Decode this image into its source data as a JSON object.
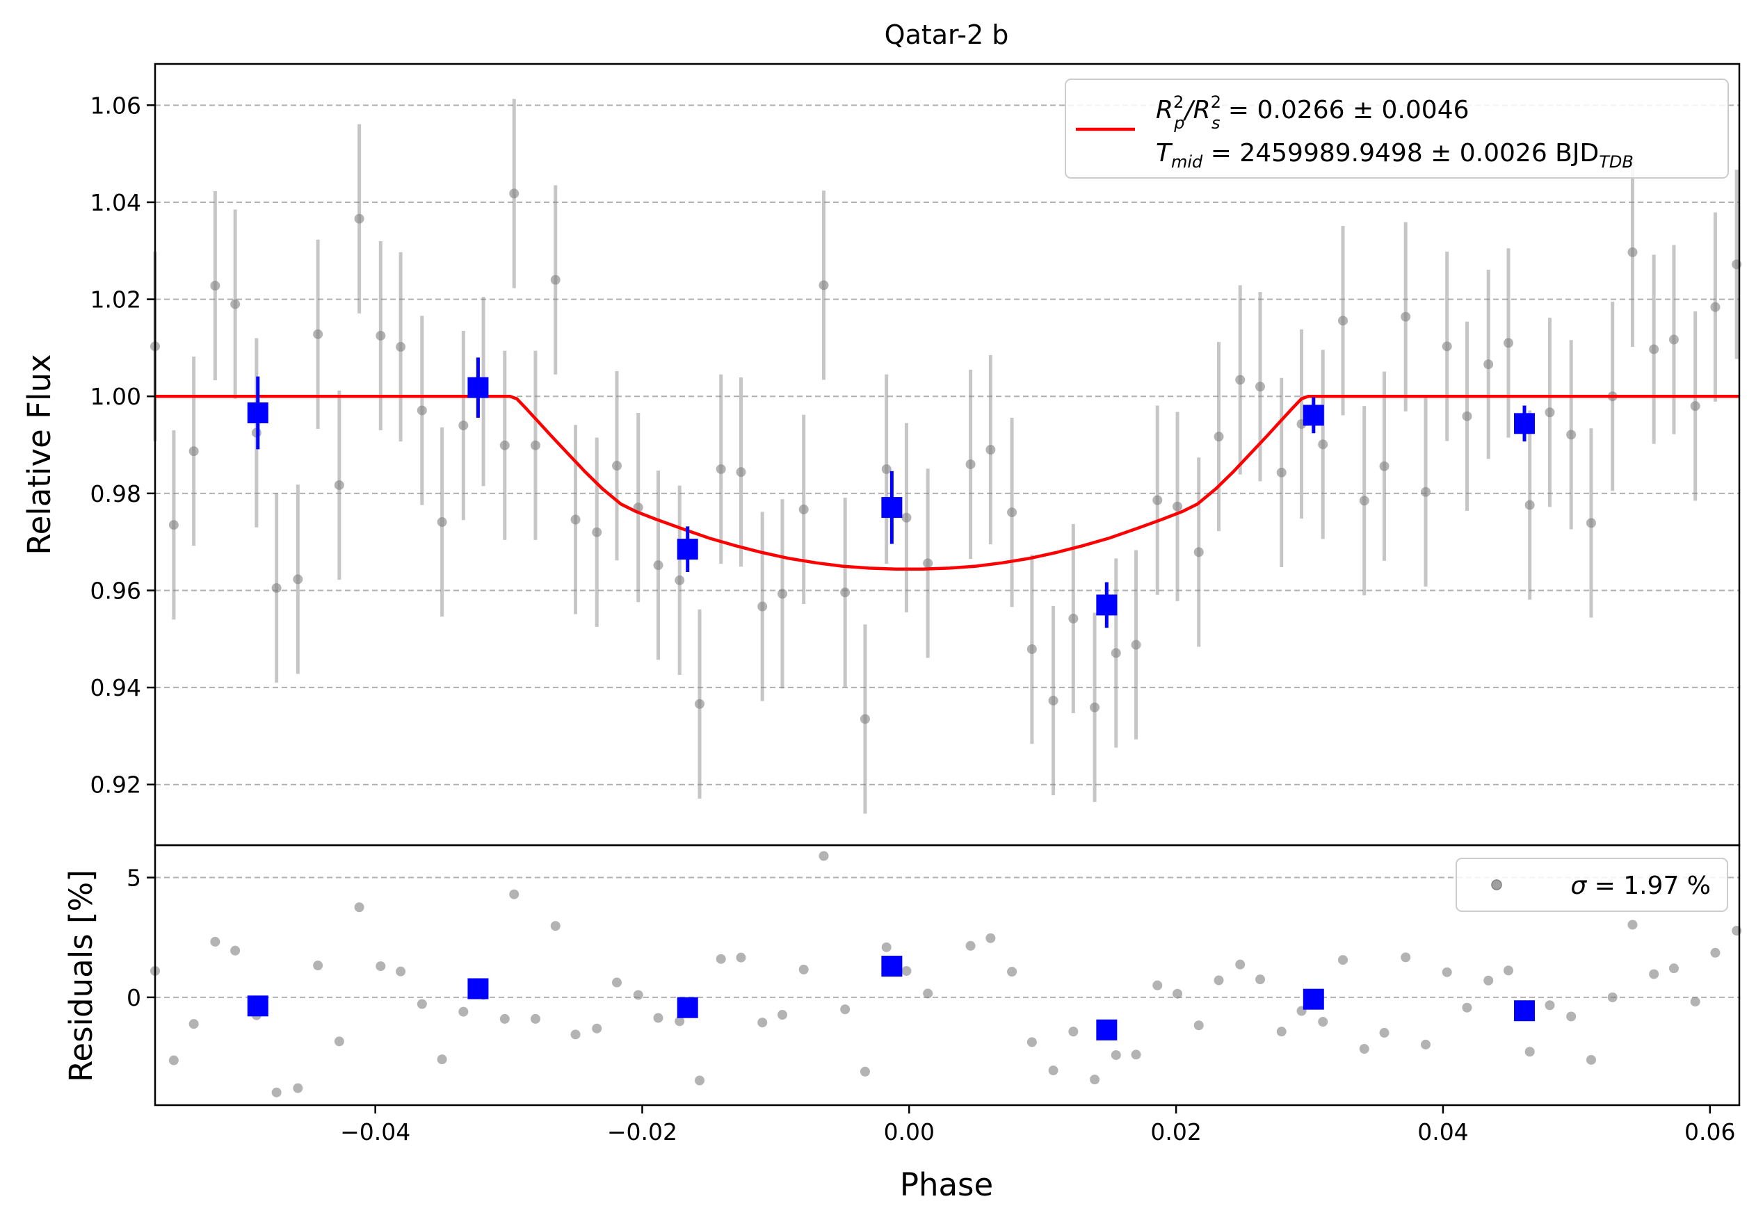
{
  "chart_data": [
    {
      "panel": "top",
      "type": "scatter",
      "title": "Qatar-2 b",
      "ylabel": "Relative Flux",
      "xlim": [
        -0.0565,
        0.0622
      ],
      "ylim": [
        0.9075,
        1.0685
      ],
      "yticks": [
        0.92,
        0.94,
        0.96,
        0.98,
        1.0,
        1.02,
        1.04,
        1.06
      ],
      "ytick_labels": [
        "0.92",
        "0.94",
        "0.96",
        "0.98",
        "1.00",
        "1.02",
        "1.04",
        "1.06"
      ],
      "grid": "horizontal dashed",
      "legend": {
        "position": "top-right",
        "entry_text": "R²p/R²s = 0.0266 ± 0.0046  Tmid = 2459989.9498 ± 0.0026 BJD_TDB",
        "line1": {
          "a": "R",
          "a_sup": "2",
          "a_sub": "p",
          "b": "/R",
          "b_sup": "2",
          "b_sub": "s",
          "rest": " = 0.0266 ± 0.0046"
        },
        "line2": {
          "a": "T",
          "a_sub": "mid",
          "rest": " = 2459989.9498 ± 0.0026 BJD",
          "rest_sub": "TDB"
        }
      },
      "series": [
        {
          "kind": "raw",
          "color": "#808080",
          "points": [
            [
              -0.0565,
              1.0103,
              0.0195
            ],
            [
              -0.0551,
              0.9735,
              0.0195
            ],
            [
              -0.0536,
              0.9887,
              0.0195
            ],
            [
              -0.052,
              1.0228,
              0.0195
            ],
            [
              -0.0505,
              1.019,
              0.0195
            ],
            [
              -0.0489,
              0.9925,
              0.0195
            ],
            [
              -0.0474,
              0.9605,
              0.0195
            ],
            [
              -0.0458,
              0.9623,
              0.0195
            ],
            [
              -0.0443,
              1.0128,
              0.0195
            ],
            [
              -0.0427,
              0.9817,
              0.0195
            ],
            [
              -0.0412,
              1.0366,
              0.0195
            ],
            [
              -0.0396,
              1.0125,
              0.0195
            ],
            [
              -0.0381,
              1.0102,
              0.0195
            ],
            [
              -0.0365,
              0.9971,
              0.0195
            ],
            [
              -0.035,
              0.9741,
              0.0195
            ],
            [
              -0.0334,
              0.994,
              0.0195
            ],
            [
              -0.0319,
              1.001,
              0.0195
            ],
            [
              -0.0303,
              0.9899,
              0.0195
            ],
            [
              -0.0296,
              1.0418,
              0.0195
            ],
            [
              -0.028,
              0.9899,
              0.0195
            ],
            [
              -0.0265,
              1.024,
              0.0195
            ],
            [
              -0.025,
              0.9746,
              0.0195
            ],
            [
              -0.0234,
              0.972,
              0.0195
            ],
            [
              -0.0219,
              0.9857,
              0.0195
            ],
            [
              -0.0203,
              0.9771,
              0.0195
            ],
            [
              -0.0188,
              0.9652,
              0.0195
            ],
            [
              -0.0172,
              0.9621,
              0.0195
            ],
            [
              -0.0157,
              0.9366,
              0.0195
            ],
            [
              -0.0141,
              0.985,
              0.0195
            ],
            [
              -0.0126,
              0.9844,
              0.0195
            ],
            [
              -0.011,
              0.9567,
              0.0195
            ],
            [
              -0.0095,
              0.9593,
              0.0195
            ],
            [
              -0.0079,
              0.9767,
              0.0195
            ],
            [
              -0.0064,
              1.0229,
              0.0195
            ],
            [
              -0.0048,
              0.9596,
              0.0195
            ],
            [
              -0.0033,
              0.9335,
              0.0195
            ],
            [
              -0.0017,
              0.985,
              0.0195
            ],
            [
              -0.0002,
              0.975,
              0.0195
            ],
            [
              0.0014,
              0.9656,
              0.0195
            ],
            [
              0.0046,
              0.986,
              0.0195
            ],
            [
              0.0061,
              0.989,
              0.0195
            ],
            [
              0.0077,
              0.9761,
              0.0195
            ],
            [
              0.0092,
              0.9479,
              0.0195
            ],
            [
              0.0108,
              0.9373,
              0.0195
            ],
            [
              0.0123,
              0.9542,
              0.0195
            ],
            [
              0.0139,
              0.9359,
              0.0195
            ],
            [
              0.0155,
              0.9471,
              0.0195
            ],
            [
              0.017,
              0.9488,
              0.0195
            ],
            [
              0.0186,
              0.9786,
              0.0195
            ],
            [
              0.0201,
              0.9773,
              0.0195
            ],
            [
              0.0217,
              0.9679,
              0.0195
            ],
            [
              0.0232,
              0.9917,
              0.0195
            ],
            [
              0.0248,
              1.0034,
              0.0195
            ],
            [
              0.0263,
              1.002,
              0.0195
            ],
            [
              0.0279,
              0.9843,
              0.0195
            ],
            [
              0.0294,
              0.9943,
              0.0195
            ],
            [
              0.031,
              0.9901,
              0.0195
            ],
            [
              0.0325,
              1.0156,
              0.0195
            ],
            [
              0.0341,
              0.9785,
              0.0195
            ],
            [
              0.0356,
              0.9856,
              0.0195
            ],
            [
              0.0372,
              1.0164,
              0.0195
            ],
            [
              0.0387,
              0.9803,
              0.0195
            ],
            [
              0.0403,
              1.0103,
              0.0195
            ],
            [
              0.0418,
              0.9959,
              0.0195
            ],
            [
              0.0434,
              1.0066,
              0.0195
            ],
            [
              0.0449,
              1.011,
              0.0195
            ],
            [
              0.0465,
              0.9776,
              0.0195
            ],
            [
              0.048,
              0.9967,
              0.0195
            ],
            [
              0.0496,
              0.9921,
              0.0195
            ],
            [
              0.0511,
              0.9739,
              0.0195
            ],
            [
              0.0527,
              1.0,
              0.0195
            ],
            [
              0.0542,
              1.0297,
              0.0195
            ],
            [
              0.0558,
              1.0097,
              0.0195
            ],
            [
              0.0573,
              1.0117,
              0.0195
            ],
            [
              0.0589,
              0.998,
              0.0195
            ],
            [
              0.0604,
              1.0184,
              0.0195
            ],
            [
              0.062,
              1.0272,
              0.0195
            ]
          ]
        },
        {
          "kind": "binned",
          "color": "#0000ff",
          "points": [
            [
              -0.0488,
              0.9966,
              0.0075
            ],
            [
              -0.0323,
              1.0018,
              0.0062
            ],
            [
              -0.0166,
              0.9685,
              0.0047
            ],
            [
              -0.0013,
              0.9771,
              0.0075
            ],
            [
              0.0148,
              0.957,
              0.0047
            ],
            [
              0.0303,
              0.9961,
              0.0037
            ],
            [
              0.0461,
              0.9944,
              0.0037
            ]
          ]
        }
      ],
      "model": {
        "name": "R²p/R²s = 0.0266 ± 0.0046  Tmid = 2459989.9498 ± 0.0026 BJD_TDB",
        "color": "#ff0000",
        "x": [
          -0.0565,
          -0.0299,
          -0.0294,
          -0.0287,
          -0.0278,
          -0.0268,
          -0.0256,
          -0.0243,
          -0.023,
          -0.0216,
          -0.0205,
          -0.019,
          -0.017,
          -0.015,
          -0.013,
          -0.011,
          -0.009,
          -0.007,
          -0.005,
          -0.003,
          -0.001,
          0.0,
          0.001,
          0.003,
          0.005,
          0.007,
          0.009,
          0.011,
          0.013,
          0.015,
          0.017,
          0.019,
          0.0205,
          0.0216,
          0.023,
          0.0243,
          0.0256,
          0.0268,
          0.0278,
          0.0287,
          0.0294,
          0.0299,
          0.0622
        ],
        "y": [
          1.0,
          1.0,
          0.9995,
          0.9975,
          0.9948,
          0.9918,
          0.9883,
          0.9845,
          0.981,
          0.9778,
          0.9763,
          0.9747,
          0.9727,
          0.9708,
          0.9692,
          0.9678,
          0.9666,
          0.9657,
          0.965,
          0.9646,
          0.9644,
          0.9644,
          0.9644,
          0.9646,
          0.965,
          0.9657,
          0.9666,
          0.9678,
          0.9692,
          0.9708,
          0.9727,
          0.9747,
          0.9763,
          0.9778,
          0.981,
          0.9845,
          0.9883,
          0.9918,
          0.9948,
          0.9975,
          0.9995,
          1.0,
          1.0
        ]
      }
    },
    {
      "panel": "bottom",
      "type": "scatter",
      "xlabel": "Phase",
      "ylabel": "Residuals [%]",
      "xlim": [
        -0.0565,
        0.0622
      ],
      "ylim": [
        -4.5,
        6.35
      ],
      "yticks": [
        0,
        5
      ],
      "ytick_labels": [
        "0",
        "5"
      ],
      "xticks": [
        -0.04,
        -0.02,
        0.0,
        0.02,
        0.04,
        0.06
      ],
      "xtick_labels": [
        "−0.04",
        "−0.02",
        "0.00",
        "0.02",
        "0.04",
        "0.06"
      ],
      "grid": "horizontal dashed",
      "legend": {
        "position": "top-right",
        "entry_text": "σ = 1.97 %",
        "sigma": "σ",
        "rest": " = 1.97 %"
      },
      "series": [
        {
          "kind": "raw",
          "color": "#808080",
          "points": [
            [
              -0.0565,
              1.1
            ],
            [
              -0.0551,
              -2.63
            ],
            [
              -0.0536,
              -1.11
            ],
            [
              -0.052,
              2.32
            ],
            [
              -0.0505,
              1.95
            ],
            [
              -0.0489,
              -0.75
            ],
            [
              -0.0474,
              -3.97
            ],
            [
              -0.0458,
              -3.79
            ],
            [
              -0.0443,
              1.33
            ],
            [
              -0.0427,
              -1.84
            ],
            [
              -0.0412,
              3.76
            ],
            [
              -0.0396,
              1.3
            ],
            [
              -0.0381,
              1.08
            ],
            [
              -0.0365,
              -0.28
            ],
            [
              -0.035,
              -2.59
            ],
            [
              -0.0334,
              -0.6
            ],
            [
              -0.0319,
              0.1
            ],
            [
              -0.0303,
              -0.9
            ],
            [
              -0.0296,
              4.3
            ],
            [
              -0.028,
              -0.9
            ],
            [
              -0.0265,
              2.98
            ],
            [
              -0.025,
              -1.55
            ],
            [
              -0.0234,
              -1.3
            ],
            [
              -0.0219,
              0.62
            ],
            [
              -0.0203,
              0.1
            ],
            [
              -0.0188,
              -0.86
            ],
            [
              -0.0172,
              -1.0
            ],
            [
              -0.0157,
              -3.47
            ],
            [
              -0.0141,
              1.6
            ],
            [
              -0.0126,
              1.66
            ],
            [
              -0.011,
              -1.05
            ],
            [
              -0.0095,
              -0.73
            ],
            [
              -0.0079,
              1.16
            ],
            [
              -0.0064,
              5.9
            ],
            [
              -0.0048,
              -0.5
            ],
            [
              -0.0033,
              -3.1
            ],
            [
              -0.0017,
              2.09
            ],
            [
              -0.0002,
              1.1
            ],
            [
              0.0014,
              0.16
            ],
            [
              0.0046,
              2.15
            ],
            [
              0.0061,
              2.47
            ],
            [
              0.0077,
              1.07
            ],
            [
              0.0092,
              -1.87
            ],
            [
              0.0108,
              -3.05
            ],
            [
              0.0123,
              -1.43
            ],
            [
              0.0139,
              -3.43
            ],
            [
              0.0155,
              -2.41
            ],
            [
              0.017,
              -2.39
            ],
            [
              0.0186,
              0.5
            ],
            [
              0.0201,
              0.15
            ],
            [
              0.0217,
              -1.17
            ],
            [
              0.0232,
              0.71
            ],
            [
              0.0248,
              1.37
            ],
            [
              0.0263,
              0.75
            ],
            [
              0.0279,
              -1.43
            ],
            [
              0.0294,
              -0.57
            ],
            [
              0.031,
              -1.02
            ],
            [
              0.0325,
              1.56
            ],
            [
              0.0341,
              -2.15
            ],
            [
              0.0356,
              -1.48
            ],
            [
              0.0372,
              1.67
            ],
            [
              0.0387,
              -1.97
            ],
            [
              0.0403,
              1.05
            ],
            [
              0.0418,
              -0.43
            ],
            [
              0.0434,
              0.7
            ],
            [
              0.0449,
              1.12
            ],
            [
              0.0465,
              -2.27
            ],
            [
              0.048,
              -0.33
            ],
            [
              0.0496,
              -0.8
            ],
            [
              0.0511,
              -2.61
            ],
            [
              0.0527,
              0.0
            ],
            [
              0.0542,
              3.03
            ],
            [
              0.0558,
              0.97
            ],
            [
              0.0573,
              1.21
            ],
            [
              0.0589,
              -0.18
            ],
            [
              0.0604,
              1.86
            ],
            [
              0.062,
              2.78
            ]
          ]
        },
        {
          "kind": "binned",
          "color": "#0000ff",
          "points": [
            [
              -0.0488,
              -0.36
            ],
            [
              -0.0323,
              0.36
            ],
            [
              -0.0166,
              -0.43
            ],
            [
              -0.0013,
              1.3
            ],
            [
              0.0148,
              -1.36
            ],
            [
              0.0303,
              -0.08
            ],
            [
              0.0461,
              -0.56
            ]
          ]
        }
      ]
    }
  ]
}
